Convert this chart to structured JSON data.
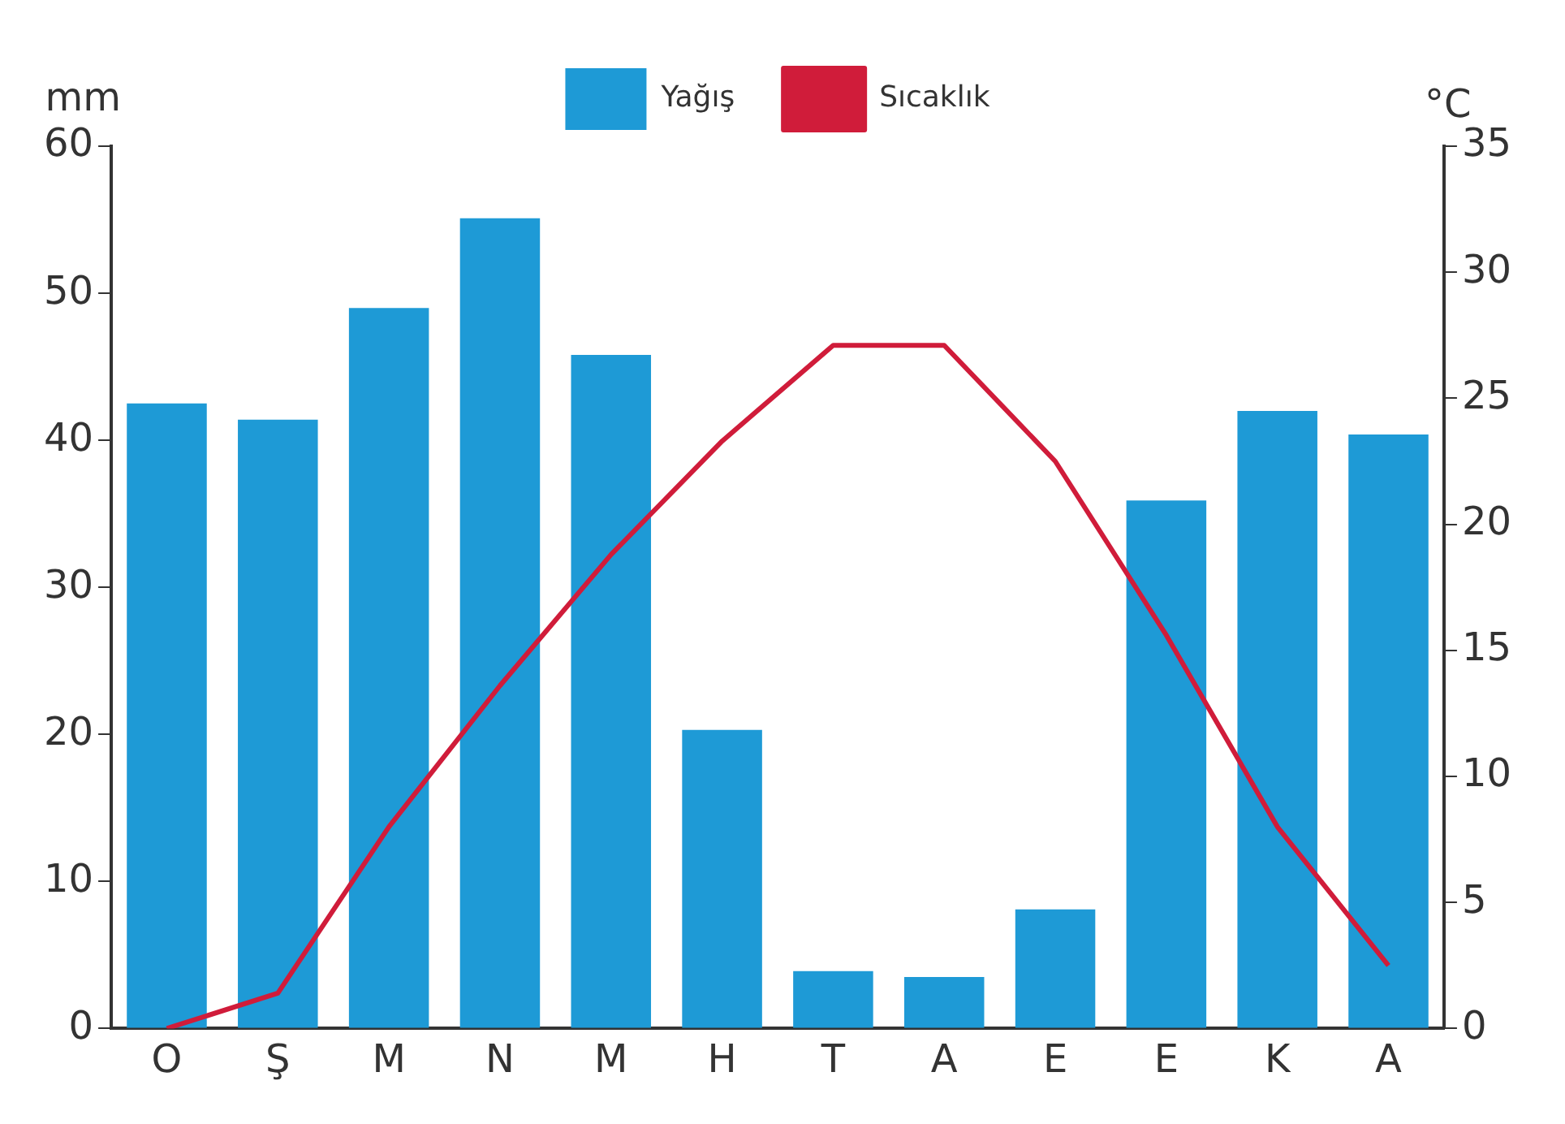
{
  "chart_data": {
    "type": "bar",
    "ylabel": "mm",
    "y2label": "°C",
    "categories": [
      "O",
      "Ş",
      "M",
      "N",
      "M",
      "H",
      "T",
      "A",
      "E",
      "E",
      "K",
      "A"
    ],
    "series": [
      {
        "name": "Yağış",
        "color": "#1e9ad6",
        "values": [
          42.5,
          41.4,
          49,
          55.1,
          45.8,
          20.3,
          3.9,
          3.5,
          8.1,
          35.9,
          42,
          40.4
        ]
      },
      {
        "name": "Sıcaklık",
        "type": "line",
        "axis": "y2",
        "color": "#d01c3a",
        "values": [
          0,
          1.4,
          8,
          13.6,
          18.8,
          23.3,
          27.1,
          27.1,
          22.5,
          15.6,
          8,
          2.5
        ]
      }
    ],
    "ylim": [
      0,
      60
    ],
    "yticks": [
      0,
      10,
      20,
      30,
      40,
      50,
      60
    ],
    "y2lim": [
      0,
      35
    ],
    "y2ticks": [
      0,
      5,
      10,
      15,
      20,
      25,
      30,
      35
    ],
    "grid": false,
    "legend": "top",
    "marker": "none",
    "line_style": "solid"
  }
}
